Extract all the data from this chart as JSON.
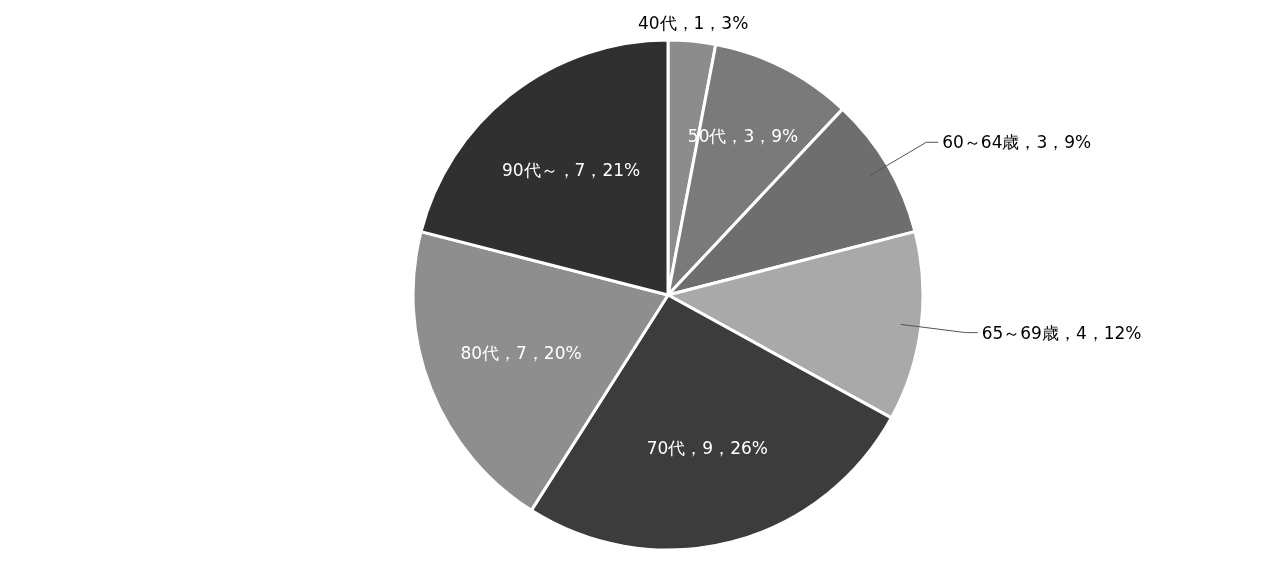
{
  "chart_data": {
    "type": "pie",
    "categories": [
      "40代，1，3%",
      "50代，3，9%",
      "60～64歳，3，9%",
      "65～69歳，4，12%",
      "70代，9，26%",
      "80代，7，20%",
      "90代～，7，21%"
    ],
    "values": [
      3,
      9,
      9,
      12,
      26,
      20,
      21
    ],
    "colors": [
      "#8c8c8c",
      "#7a7a7a",
      "#6e6e6e",
      "#a9a9a9",
      "#3c3c3c",
      "#8e8e8e",
      "#303030"
    ]
  }
}
